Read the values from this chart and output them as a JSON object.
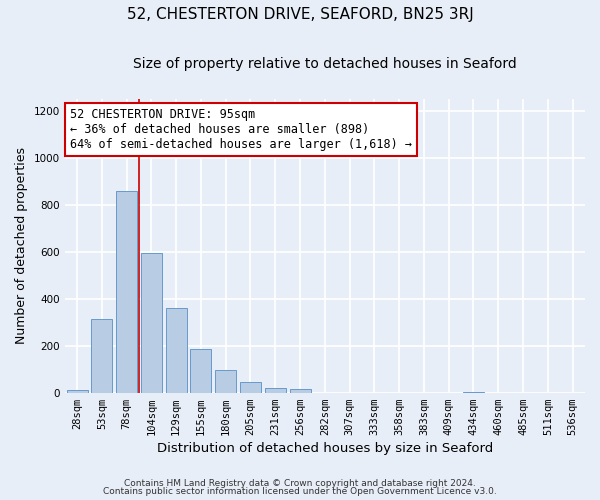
{
  "title": "52, CHESTERTON DRIVE, SEAFORD, BN25 3RJ",
  "subtitle": "Size of property relative to detached houses in Seaford",
  "xlabel": "Distribution of detached houses by size in Seaford",
  "ylabel": "Number of detached properties",
  "bar_labels": [
    "28sqm",
    "53sqm",
    "78sqm",
    "104sqm",
    "129sqm",
    "155sqm",
    "180sqm",
    "205sqm",
    "231sqm",
    "256sqm",
    "282sqm",
    "307sqm",
    "333sqm",
    "358sqm",
    "383sqm",
    "409sqm",
    "434sqm",
    "460sqm",
    "485sqm",
    "511sqm",
    "536sqm"
  ],
  "bar_values": [
    10,
    315,
    860,
    595,
    360,
    185,
    98,
    45,
    20,
    17,
    0,
    0,
    0,
    0,
    0,
    0,
    5,
    0,
    0,
    0,
    0
  ],
  "bar_color": "#b8cce4",
  "bar_edge_color": "#6699cc",
  "vline_color": "#cc0000",
  "annotation_title": "52 CHESTERTON DRIVE: 95sqm",
  "annotation_line1": "← 36% of detached houses are smaller (898)",
  "annotation_line2": "64% of semi-detached houses are larger (1,618) →",
  "annotation_box_color": "#cc0000",
  "ylim": [
    0,
    1250
  ],
  "yticks": [
    0,
    200,
    400,
    600,
    800,
    1000,
    1200
  ],
  "footnote1": "Contains HM Land Registry data © Crown copyright and database right 2024.",
  "footnote2": "Contains public sector information licensed under the Open Government Licence v3.0.",
  "bg_color": "#e8eef8",
  "plot_bg_color": "#e8eef8",
  "grid_color": "#ffffff",
  "title_fontsize": 11,
  "subtitle_fontsize": 10,
  "xlabel_fontsize": 9.5,
  "ylabel_fontsize": 9,
  "tick_fontsize": 7.5,
  "annotation_fontsize": 8.5,
  "footnote_fontsize": 6.5
}
